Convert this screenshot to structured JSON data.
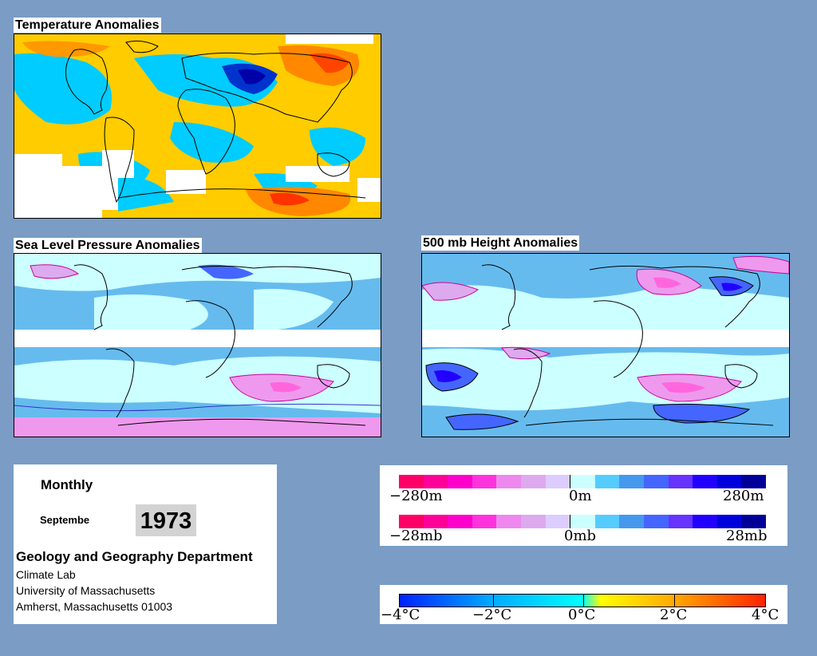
{
  "panels": {
    "temperature": {
      "title": "Temperature Anomalies"
    },
    "slp": {
      "title": "Sea Level Pressure Anomalies"
    },
    "height500": {
      "title": "500 mb Height Anomalies"
    }
  },
  "info": {
    "period": "Monthly",
    "month": "Septembe",
    "year": "1973",
    "department": "Geology and Geography Department",
    "lines": [
      "Climate Lab",
      "University of Massachusetts",
      "Amherst, Massachusetts 01003"
    ]
  },
  "legends": {
    "height": {
      "labels": [
        "−280m",
        "0m",
        "280m"
      ],
      "colors": [
        "#ff0066",
        "#ff0099",
        "#ff00cc",
        "#ff33dd",
        "#ee88ee",
        "#ddaaee",
        "#ddccff",
        "#ccffff",
        "#55ccff",
        "#4499ee",
        "#4466ff",
        "#6633ff",
        "#2200ff",
        "#0000dd",
        "#000099"
      ]
    },
    "pressure": {
      "labels": [
        "−28mb",
        "0mb",
        "28mb"
      ],
      "colors": [
        "#ff0066",
        "#ff0099",
        "#ff00cc",
        "#ff33dd",
        "#ee88ee",
        "#ddaaee",
        "#ddccff",
        "#ccffff",
        "#55ccff",
        "#4499ee",
        "#4466ff",
        "#6633ff",
        "#2200ff",
        "#0000dd",
        "#000099"
      ]
    },
    "temperature": {
      "labels": [
        "−4°C",
        "−2°C",
        "0°C",
        "2°C",
        "4°C"
      ]
    }
  },
  "colors": {
    "background": "#7b9cc4",
    "temp_cold": "#00ccff",
    "temp_warm": "#ffcc00",
    "temp_hot": "#ff4400",
    "pressure_low": "#66bbee",
    "pressure_high": "#ee99ee"
  }
}
